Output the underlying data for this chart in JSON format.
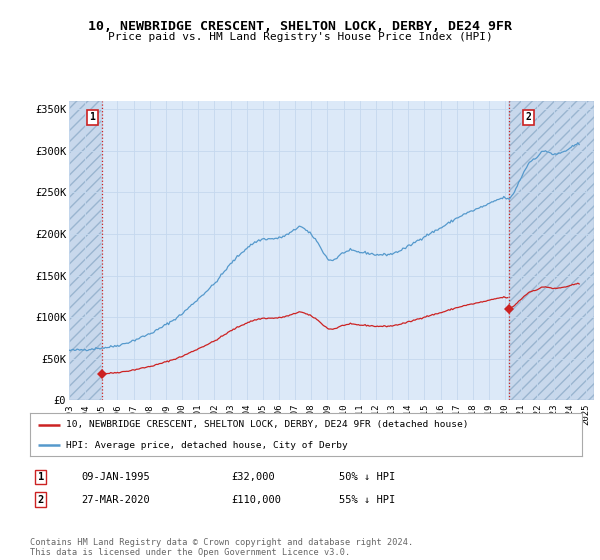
{
  "title": "10, NEWBRIDGE CRESCENT, SHELTON LOCK, DERBY, DE24 9FR",
  "subtitle": "Price paid vs. HM Land Registry's House Price Index (HPI)",
  "ylim": [
    0,
    360000
  ],
  "yticks": [
    0,
    50000,
    100000,
    150000,
    200000,
    250000,
    300000,
    350000
  ],
  "ytick_labels": [
    "£0",
    "£50K",
    "£100K",
    "£150K",
    "£200K",
    "£250K",
    "£300K",
    "£350K"
  ],
  "xlim_start": 1993.0,
  "xlim_end": 2025.5,
  "xticks": [
    1993,
    1994,
    1995,
    1996,
    1997,
    1998,
    1999,
    2000,
    2001,
    2002,
    2003,
    2004,
    2005,
    2006,
    2007,
    2008,
    2009,
    2010,
    2011,
    2012,
    2013,
    2014,
    2015,
    2016,
    2017,
    2018,
    2019,
    2020,
    2021,
    2022,
    2023,
    2024,
    2025
  ],
  "bg_color": "#ffffff",
  "plot_bg_color": "#dce9f8",
  "hatch_bg_color": "#c8d8ec",
  "grid_color": "#b8cfe8",
  "sale1_date": 1995.04,
  "sale1_price": 32000,
  "sale2_date": 2020.24,
  "sale2_price": 110000,
  "sale_color": "#cc2222",
  "hpi_color": "#5599cc",
  "legend_label_red": "10, NEWBRIDGE CRESCENT, SHELTON LOCK, DERBY, DE24 9FR (detached house)",
  "legend_label_blue": "HPI: Average price, detached house, City of Derby",
  "table_row1": [
    "1",
    "09-JAN-1995",
    "£32,000",
    "50% ↓ HPI"
  ],
  "table_row2": [
    "2",
    "27-MAR-2020",
    "£110,000",
    "55% ↓ HPI"
  ],
  "footer": "Contains HM Land Registry data © Crown copyright and database right 2024.\nThis data is licensed under the Open Government Licence v3.0."
}
